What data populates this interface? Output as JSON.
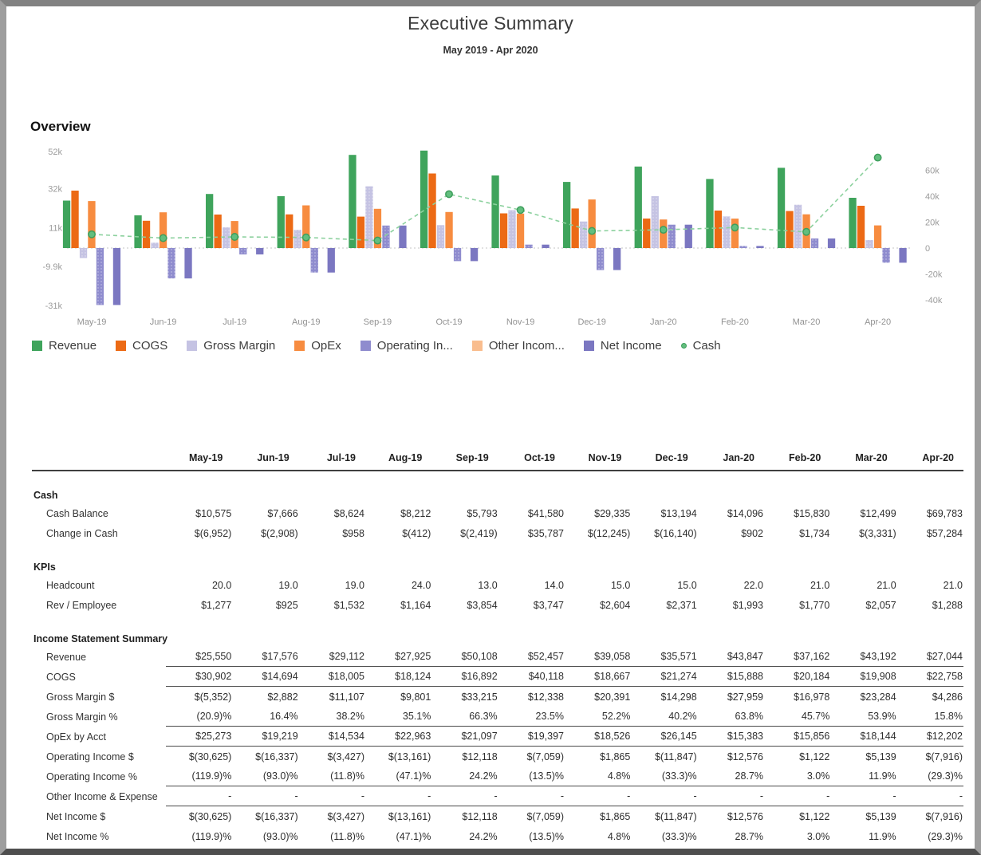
{
  "page": {
    "title": "Executive Summary",
    "subtitle": "May 2019 - Apr 2020",
    "overview_heading": "Overview"
  },
  "chart_data": {
    "type": "grouped-bar-with-line",
    "title": "Overview",
    "categories": [
      "May-19",
      "Jun-19",
      "Jul-19",
      "Aug-19",
      "Sep-19",
      "Oct-19",
      "Nov-19",
      "Dec-19",
      "Jan-20",
      "Feb-20",
      "Mar-20",
      "Apr-20"
    ],
    "series": [
      {
        "name": "Revenue",
        "color": "#3fa45c",
        "textured": false,
        "values": [
          25550,
          17576,
          29112,
          27925,
          50108,
          52457,
          39058,
          35571,
          43847,
          37162,
          43192,
          27044
        ]
      },
      {
        "name": "COGS",
        "color": "#ec6a15",
        "textured": false,
        "values": [
          30902,
          14694,
          18005,
          18124,
          16892,
          40118,
          18667,
          21274,
          15888,
          20184,
          19908,
          22758
        ]
      },
      {
        "name": "Gross Margin",
        "color": "#c5c3e3",
        "textured": true,
        "values": [
          -5352,
          2882,
          11107,
          9801,
          33215,
          12338,
          20391,
          14298,
          27959,
          16978,
          23284,
          4286
        ]
      },
      {
        "name": "OpEx",
        "color": "#f78c40",
        "textured": false,
        "values": [
          25273,
          19219,
          14534,
          22963,
          21097,
          19397,
          18526,
          26145,
          15383,
          15856,
          18144,
          12202
        ]
      },
      {
        "name": "Operating In...",
        "color": "#8f8cce",
        "textured": true,
        "values": [
          -30625,
          -16337,
          -3427,
          -13161,
          12118,
          -7059,
          1865,
          -11847,
          12576,
          1122,
          5139,
          -7916
        ]
      },
      {
        "name": "Other Incom...",
        "color": "#f9bd8e",
        "textured": true,
        "values": [
          0,
          0,
          0,
          0,
          0,
          0,
          0,
          0,
          0,
          0,
          0,
          0
        ]
      },
      {
        "name": "Net Income",
        "color": "#7b77c1",
        "textured": false,
        "values": [
          -30625,
          -16337,
          -3427,
          -13161,
          12118,
          -7059,
          1865,
          -11847,
          12576,
          1122,
          5139,
          -7916
        ]
      }
    ],
    "line_series": {
      "name": "Cash",
      "color": "#8cd19e",
      "marker_fill": "#62be7e",
      "marker_stroke": "#3e9e5c",
      "values": [
        10575,
        7666,
        8624,
        8212,
        5793,
        41580,
        29335,
        13194,
        14096,
        15830,
        12499,
        69783
      ]
    },
    "axes": {
      "left": {
        "labels": [
          "52k",
          "32k",
          "11k",
          "-9.9k",
          "-31k"
        ],
        "values": [
          52000,
          32000,
          11000,
          -9900,
          -31000
        ]
      },
      "right": {
        "labels": [
          "60k",
          "40k",
          "20k",
          "0",
          "-20k",
          "-40k"
        ],
        "values": [
          60000,
          40000,
          20000,
          0,
          -20000,
          -40000
        ]
      }
    },
    "legend_position": "bottom",
    "grid": "zero-line-only"
  },
  "table": {
    "columns": [
      "May-19",
      "Jun-19",
      "Jul-19",
      "Aug-19",
      "Sep-19",
      "Oct-19",
      "Nov-19",
      "Dec-19",
      "Jan-20",
      "Feb-20",
      "Mar-20",
      "Apr-20"
    ],
    "sections": [
      {
        "title": "Cash",
        "rows": [
          {
            "label": "Cash Balance",
            "rule_below": false,
            "values": [
              "$10,575",
              "$7,666",
              "$8,624",
              "$8,212",
              "$5,793",
              "$41,580",
              "$29,335",
              "$13,194",
              "$14,096",
              "$15,830",
              "$12,499",
              "$69,783"
            ]
          },
          {
            "label": "Change in Cash",
            "rule_below": false,
            "values": [
              "$(6,952)",
              "$(2,908)",
              "$958",
              "$(412)",
              "$(2,419)",
              "$35,787",
              "$(12,245)",
              "$(16,140)",
              "$902",
              "$1,734",
              "$(3,331)",
              "$57,284"
            ]
          }
        ]
      },
      {
        "title": "KPIs",
        "rows": [
          {
            "label": "Headcount",
            "rule_below": false,
            "values": [
              "20.0",
              "19.0",
              "19.0",
              "24.0",
              "13.0",
              "14.0",
              "15.0",
              "15.0",
              "22.0",
              "21.0",
              "21.0",
              "21.0"
            ]
          },
          {
            "label": "Rev / Employee",
            "rule_below": false,
            "values": [
              "$1,277",
              "$925",
              "$1,532",
              "$1,164",
              "$3,854",
              "$3,747",
              "$2,604",
              "$2,371",
              "$1,993",
              "$1,770",
              "$2,057",
              "$1,288"
            ]
          }
        ]
      },
      {
        "title": "Income Statement Summary",
        "rows": [
          {
            "label": "Revenue",
            "rule_below": true,
            "values": [
              "$25,550",
              "$17,576",
              "$29,112",
              "$27,925",
              "$50,108",
              "$52,457",
              "$39,058",
              "$35,571",
              "$43,847",
              "$37,162",
              "$43,192",
              "$27,044"
            ]
          },
          {
            "label": "COGS",
            "rule_below": true,
            "values": [
              "$30,902",
              "$14,694",
              "$18,005",
              "$18,124",
              "$16,892",
              "$40,118",
              "$18,667",
              "$21,274",
              "$15,888",
              "$20,184",
              "$19,908",
              "$22,758"
            ]
          },
          {
            "label": "Gross Margin $",
            "rule_below": false,
            "values": [
              "$(5,352)",
              "$2,882",
              "$11,107",
              "$9,801",
              "$33,215",
              "$12,338",
              "$20,391",
              "$14,298",
              "$27,959",
              "$16,978",
              "$23,284",
              "$4,286"
            ]
          },
          {
            "label": "Gross Margin %",
            "rule_below": true,
            "values": [
              "(20.9)%",
              "16.4%",
              "38.2%",
              "35.1%",
              "66.3%",
              "23.5%",
              "52.2%",
              "40.2%",
              "63.8%",
              "45.7%",
              "53.9%",
              "15.8%"
            ]
          },
          {
            "label": "OpEx by Acct",
            "rule_below": true,
            "values": [
              "$25,273",
              "$19,219",
              "$14,534",
              "$22,963",
              "$21,097",
              "$19,397",
              "$18,526",
              "$26,145",
              "$15,383",
              "$15,856",
              "$18,144",
              "$12,202"
            ]
          },
          {
            "label": "Operating Income $",
            "rule_below": false,
            "values": [
              "$(30,625)",
              "$(16,337)",
              "$(3,427)",
              "$(13,161)",
              "$12,118",
              "$(7,059)",
              "$1,865",
              "$(11,847)",
              "$12,576",
              "$1,122",
              "$5,139",
              "$(7,916)"
            ]
          },
          {
            "label": "Operating Income %",
            "rule_below": true,
            "values": [
              "(119.9)%",
              "(93.0)%",
              "(11.8)%",
              "(47.1)%",
              "24.2%",
              "(13.5)%",
              "4.8%",
              "(33.3)%",
              "28.7%",
              "3.0%",
              "11.9%",
              "(29.3)%"
            ]
          },
          {
            "label": "Other Income & Expense",
            "rule_below": true,
            "values": [
              "-",
              "-",
              "-",
              "-",
              "-",
              "-",
              "-",
              "-",
              "-",
              "-",
              "-",
              "-"
            ]
          },
          {
            "label": "Net Income $",
            "rule_below": false,
            "values": [
              "$(30,625)",
              "$(16,337)",
              "$(3,427)",
              "$(13,161)",
              "$12,118",
              "$(7,059)",
              "$1,865",
              "$(11,847)",
              "$12,576",
              "$1,122",
              "$5,139",
              "$(7,916)"
            ]
          },
          {
            "label": "Net Income %",
            "rule_below": false,
            "values": [
              "(119.9)%",
              "(93.0)%",
              "(11.8)%",
              "(47.1)%",
              "24.2%",
              "(13.5)%",
              "4.8%",
              "(33.3)%",
              "28.7%",
              "3.0%",
              "11.9%",
              "(29.3)%"
            ]
          }
        ]
      }
    ]
  }
}
